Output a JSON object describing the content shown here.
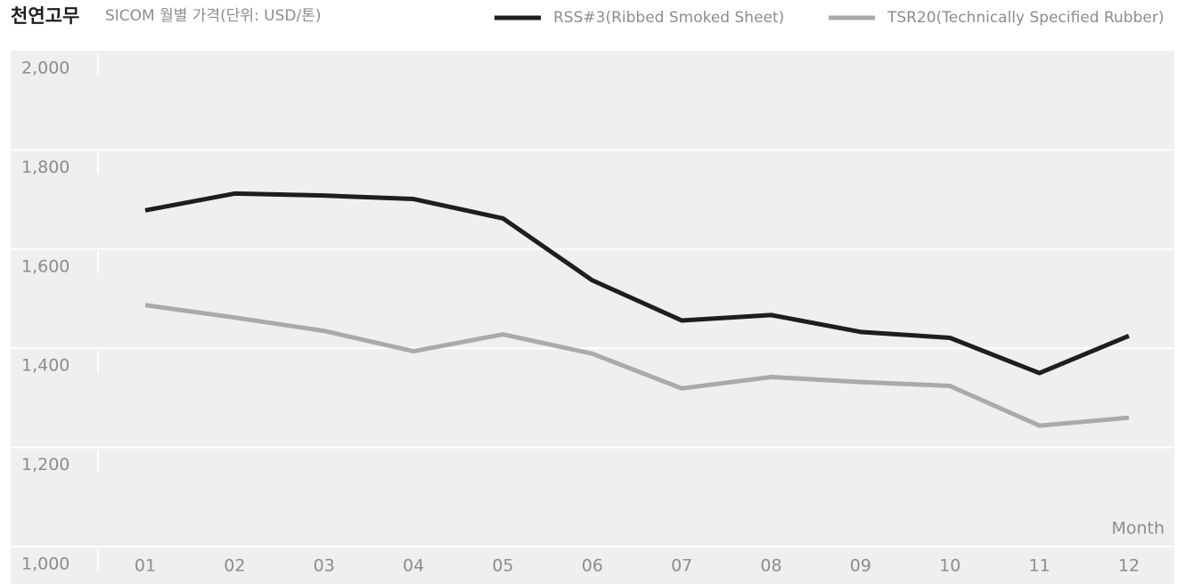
{
  "chart_data": {
    "type": "line",
    "title": "천연고무",
    "subtitle": "SICOM 월별 가격(단위: USD/톤)",
    "x_label": "Month",
    "categories": [
      "01",
      "02",
      "03",
      "04",
      "05",
      "06",
      "07",
      "08",
      "09",
      "10",
      "11",
      "12"
    ],
    "series": [
      {
        "name": "RSS#3(Ribbed Smoked Sheet)",
        "color": "#1e1e1e",
        "values": [
          1678,
          1712,
          1708,
          1701,
          1662,
          1537,
          1456,
          1467,
          1433,
          1421,
          1350,
          1425
        ]
      },
      {
        "name": "TSR20(Technically Specified Rubber)",
        "color": "#a9abab",
        "values": [
          1487,
          1462,
          1435,
          1394,
          1428,
          1389,
          1319,
          1342,
          1332,
          1324,
          1244,
          1260
        ]
      }
    ],
    "ylim": [
      1000,
      2000
    ],
    "yticks": [
      {
        "value": 1000,
        "label": "1,000"
      },
      {
        "value": 1200,
        "label": "1,200"
      },
      {
        "value": 1400,
        "label": "1,400"
      },
      {
        "value": 1600,
        "label": "1,600"
      },
      {
        "value": 1800,
        "label": "1,800"
      },
      {
        "value": 2000,
        "label": "2,000"
      }
    ],
    "grid": true
  }
}
